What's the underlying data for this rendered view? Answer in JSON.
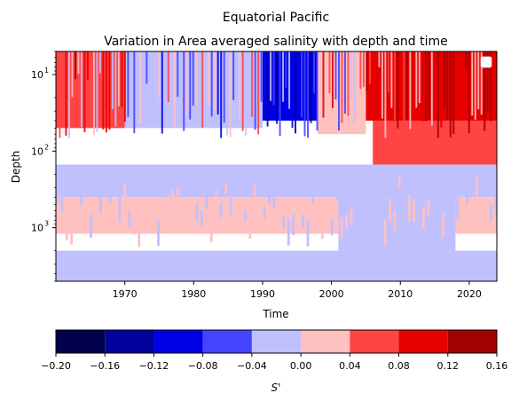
{
  "chart_data": {
    "type": "heatmap",
    "suptitle": "Equatorial Pacific",
    "title": "Variation in Area averaged salinity with depth and time",
    "xlabel": "Time",
    "ylabel": "Depth",
    "xlim": [
      1960,
      2024
    ],
    "ylim": [
      5000,
      5
    ],
    "y_scale": "log",
    "y_inverted": true,
    "grid": false,
    "legend": "top-right (empty)",
    "x_ticks": [
      1970,
      1980,
      1990,
      2000,
      2010,
      2020
    ],
    "x_tick_labels": [
      "1970",
      "1980",
      "1990",
      "2000",
      "2010",
      "2020"
    ],
    "y_ticks": [
      10,
      100,
      1000
    ],
    "y_tick_labels": [
      "10",
      "10",
      "10"
    ],
    "y_tick_exponents": [
      "1",
      "2",
      "3"
    ],
    "colorbar": {
      "label": "S'",
      "levels": [
        -0.2,
        -0.16,
        -0.12,
        -0.08,
        -0.04,
        0.0,
        0.04,
        0.08,
        0.12,
        0.16
      ],
      "tick_labels": [
        "−0.20",
        "−0.16",
        "−0.12",
        "−0.08",
        "−0.04",
        "0.00",
        "0.04",
        "0.08",
        "0.12",
        "0.16"
      ],
      "colors": [
        "#00004c",
        "#00009a",
        "#0000e6",
        "#4444ff",
        "#c0c0ff",
        "#ffc0c0",
        "#ff4444",
        "#e60000",
        "#a30000"
      ]
    },
    "regions": [
      {
        "t0": 1960,
        "t1": 1970,
        "d0": 5,
        "d1": 50,
        "value": 0.06
      },
      {
        "t0": 1970,
        "t1": 1990,
        "d0": 5,
        "d1": 50,
        "value": -0.02
      },
      {
        "t0": 1990,
        "t1": 1998,
        "d0": 5,
        "d1": 40,
        "value": -0.09
      },
      {
        "t0": 1998,
        "t1": 2005,
        "d0": 5,
        "d1": 60,
        "value": 0.02
      },
      {
        "t0": 2005,
        "t1": 2024,
        "d0": 5,
        "d1": 40,
        "value": 0.09
      },
      {
        "t0": 2006,
        "t1": 2024,
        "d0": 40,
        "d1": 150,
        "value": 0.06
      },
      {
        "t0": 1960,
        "t1": 2024,
        "d0": 150,
        "d1": 400,
        "value": -0.02
      },
      {
        "t0": 1960,
        "t1": 2024,
        "d0": 400,
        "d1": 1200,
        "value": 0.02
      },
      {
        "t0": 2001,
        "t1": 2018,
        "d0": 400,
        "d1": 2000,
        "value": -0.02
      },
      {
        "t0": 1960,
        "t1": 2024,
        "d0": 2000,
        "d1": 5000,
        "value": -0.02
      }
    ]
  }
}
